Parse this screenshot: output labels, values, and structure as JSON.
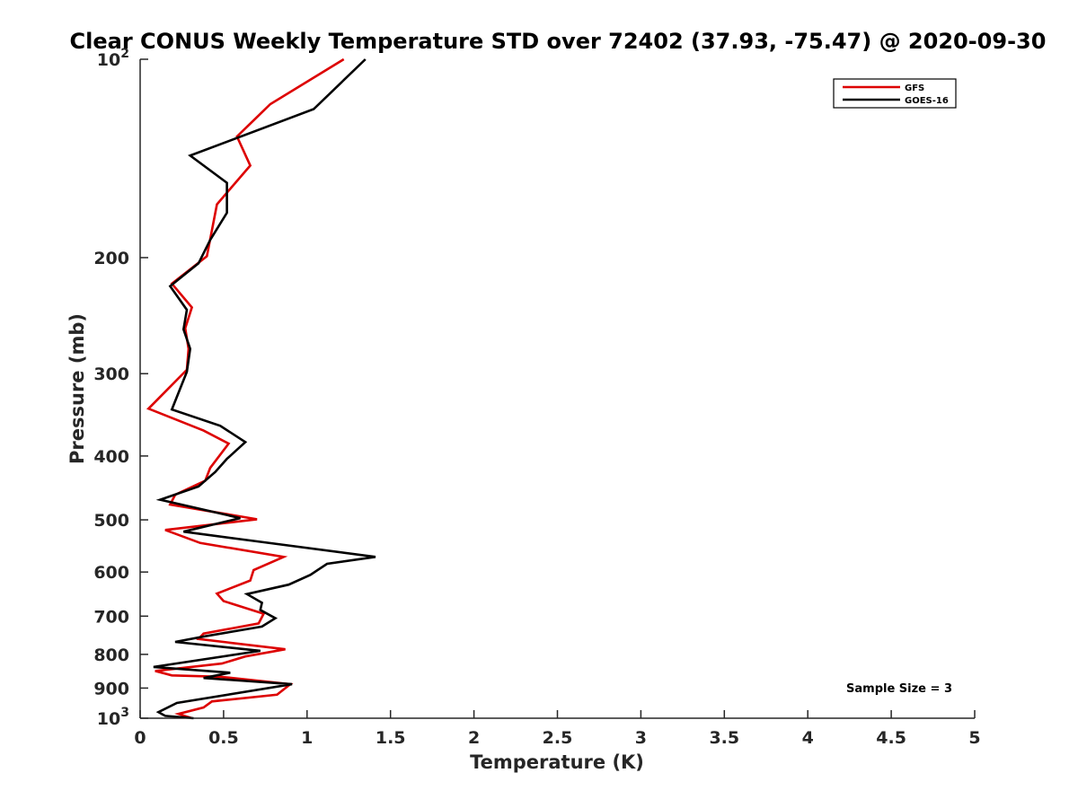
{
  "chart_data": {
    "type": "line",
    "title": "Clear CONUS Weekly Temperature STD over 72402 (37.93, -75.47) @ 2020-09-30",
    "xlabel": "Temperature (K)",
    "ylabel": "Pressure (mb)",
    "xlim": [
      0,
      5
    ],
    "ylim": [
      1000,
      100
    ],
    "y_scale": "log",
    "y_reversed": true,
    "grid": false,
    "legend_position": "top-right",
    "x_ticks": [
      "0",
      "0.5",
      "1",
      "1.5",
      "2",
      "2.5",
      "3",
      "3.5",
      "4",
      "4.5",
      "5"
    ],
    "x_tick_values": [
      0,
      0.5,
      1,
      1.5,
      2,
      2.5,
      3,
      3.5,
      4,
      4.5,
      5
    ],
    "y_ticks": [
      {
        "value": 100,
        "base": "10",
        "exp": "2"
      },
      {
        "value": 200,
        "label": "200"
      },
      {
        "value": 300,
        "label": "300"
      },
      {
        "value": 400,
        "label": "400"
      },
      {
        "value": 500,
        "label": "500"
      },
      {
        "value": 600,
        "label": "600"
      },
      {
        "value": 700,
        "label": "700"
      },
      {
        "value": 800,
        "label": "800"
      },
      {
        "value": 900,
        "label": "900"
      },
      {
        "value": 1000,
        "base": "10",
        "exp": "3"
      }
    ],
    "annotation": "Sample Size = 3",
    "series": [
      {
        "name": "GFS",
        "color": "#dd0000",
        "points": [
          [
            1.22,
            100
          ],
          [
            0.78,
            117
          ],
          [
            0.58,
            131
          ],
          [
            0.66,
            145
          ],
          [
            0.46,
            166
          ],
          [
            0.4,
            199
          ],
          [
            0.19,
            219
          ],
          [
            0.31,
            238
          ],
          [
            0.27,
            256
          ],
          [
            0.29,
            275
          ],
          [
            0.28,
            296
          ],
          [
            0.05,
            339
          ],
          [
            0.38,
            366
          ],
          [
            0.53,
            383
          ],
          [
            0.42,
            417
          ],
          [
            0.39,
            436
          ],
          [
            0.21,
            458
          ],
          [
            0.18,
            474
          ],
          [
            0.7,
            499
          ],
          [
            0.15,
            518
          ],
          [
            0.36,
            542
          ],
          [
            0.86,
            569
          ],
          [
            0.68,
            596
          ],
          [
            0.66,
            618
          ],
          [
            0.46,
            647
          ],
          [
            0.5,
            664
          ],
          [
            0.74,
            694
          ],
          [
            0.71,
            718
          ],
          [
            0.38,
            744
          ],
          [
            0.35,
            758
          ],
          [
            0.87,
            786
          ],
          [
            0.63,
            806
          ],
          [
            0.49,
            826
          ],
          [
            0.09,
            848
          ],
          [
            0.19,
            861
          ],
          [
            0.48,
            865
          ],
          [
            0.9,
            888
          ],
          [
            0.82,
            921
          ],
          [
            0.43,
            943
          ],
          [
            0.38,
            963
          ],
          [
            0.23,
            985
          ],
          [
            0.31,
            1000
          ]
        ]
      },
      {
        "name": "GOES-16",
        "color": "#000000",
        "points": [
          [
            1.35,
            100
          ],
          [
            1.04,
            119
          ],
          [
            0.3,
            140
          ],
          [
            0.52,
            154
          ],
          [
            0.52,
            171
          ],
          [
            0.42,
            188
          ],
          [
            0.35,
            204
          ],
          [
            0.18,
            221
          ],
          [
            0.28,
            240
          ],
          [
            0.26,
            257
          ],
          [
            0.3,
            275
          ],
          [
            0.28,
            298
          ],
          [
            0.19,
            340
          ],
          [
            0.48,
            360
          ],
          [
            0.63,
            381
          ],
          [
            0.52,
            404
          ],
          [
            0.45,
            423
          ],
          [
            0.35,
            445
          ],
          [
            0.12,
            466
          ],
          [
            0.6,
            497
          ],
          [
            0.26,
            521
          ],
          [
            0.7,
            539
          ],
          [
            1.41,
            569
          ],
          [
            1.12,
            583
          ],
          [
            1.02,
            606
          ],
          [
            0.89,
            627
          ],
          [
            0.64,
            648
          ],
          [
            0.73,
            668
          ],
          [
            0.72,
            685
          ],
          [
            0.81,
            705
          ],
          [
            0.73,
            726
          ],
          [
            0.39,
            751
          ],
          [
            0.21,
            766
          ],
          [
            0.72,
            790
          ],
          [
            0.08,
            836
          ],
          [
            0.54,
            853
          ],
          [
            0.38,
            869
          ],
          [
            0.91,
            888
          ],
          [
            0.22,
            948
          ],
          [
            0.11,
            979
          ],
          [
            0.15,
            992
          ],
          [
            0.32,
            1000
          ]
        ]
      }
    ]
  }
}
